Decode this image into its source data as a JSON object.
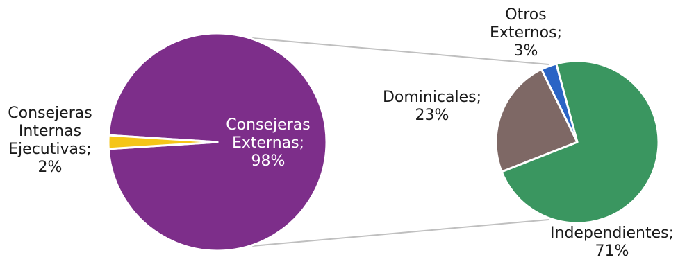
{
  "chart_data": {
    "type": "pie",
    "subtype": "pie-of-pie",
    "legend": "none",
    "primary": {
      "slices": [
        {
          "name": "Consejeras Externas",
          "value": 98,
          "label_lines": [
            "Consejeras",
            "Externas;",
            "98%"
          ],
          "color": "#7D2E8A"
        },
        {
          "name": "Consejeras Internas Ejecutivas",
          "value": 2,
          "label_lines": [
            "Consejeras",
            "Internas",
            "Ejecutivas;",
            "2%"
          ],
          "color": "#F5C518"
        }
      ]
    },
    "secondary": {
      "breakdown_of": "Consejeras Externas",
      "slices": [
        {
          "name": "Independientes",
          "value": 71,
          "label_lines": [
            "Independientes;",
            "71%"
          ],
          "color": "#3A9660"
        },
        {
          "name": "Dominicales",
          "value": 23,
          "label_lines": [
            "Dominicales;",
            "23%"
          ],
          "color": "#7E6865"
        },
        {
          "name": "Otros Externos",
          "value": 3,
          "label_lines": [
            "Otros",
            "Externos;",
            "3%"
          ],
          "color": "#2A64C5"
        }
      ]
    },
    "connector_color": "#BFBFBF"
  }
}
